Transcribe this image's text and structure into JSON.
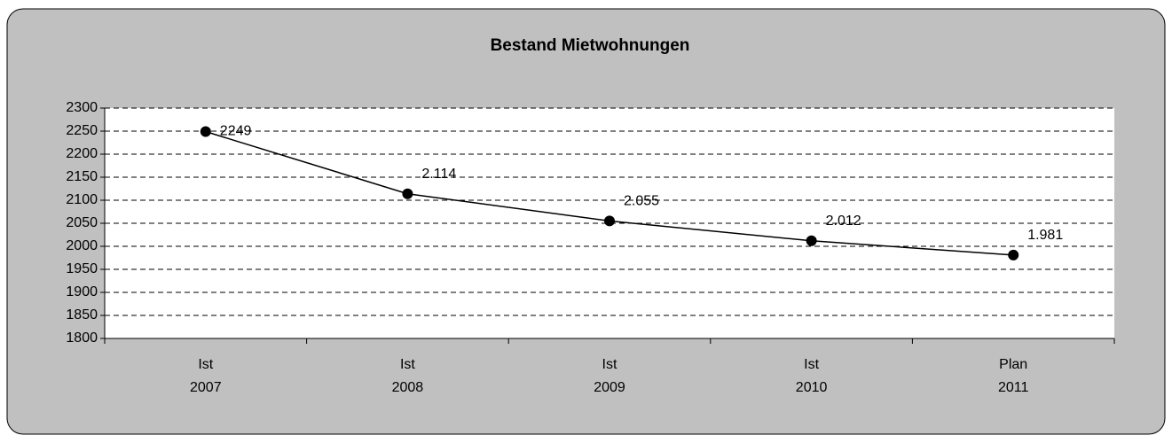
{
  "chart_data": {
    "type": "line",
    "title": "Bestand Mietwohnungen",
    "categories": [
      [
        "Ist",
        "2007"
      ],
      [
        "Ist",
        "2008"
      ],
      [
        "Ist",
        "2009"
      ],
      [
        "Ist",
        "2010"
      ],
      [
        "Plan",
        "2011"
      ]
    ],
    "values": [
      2249,
      2114,
      2055,
      2012,
      1981
    ],
    "value_labels": [
      "2249",
      "2.114",
      "2.055",
      "2.012",
      "1.981"
    ],
    "color": "#000000",
    "ylim": [
      1800,
      2300
    ],
    "yticks": [
      1800,
      1850,
      1900,
      1950,
      2000,
      2050,
      2100,
      2150,
      2200,
      2250,
      2300
    ],
    "grid": true
  }
}
